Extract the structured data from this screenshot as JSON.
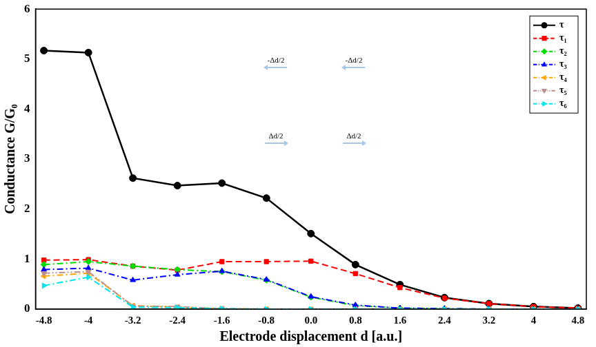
{
  "chart_data": {
    "type": "line",
    "x_label": "Electrode displacement d [a.u.]",
    "y_label": "Conductance G/G₀",
    "x": [
      -4.8,
      -4.0,
      -3.2,
      -2.4,
      -1.6,
      -0.8,
      0.0,
      0.8,
      1.6,
      2.4,
      3.2,
      4.0,
      4.8
    ],
    "series": [
      {
        "name": "τ",
        "color": "#000000",
        "marker": "circle",
        "line_style": "solid",
        "values": [
          5.17,
          5.13,
          2.62,
          2.47,
          2.52,
          2.22,
          1.51,
          0.89,
          0.49,
          0.23,
          0.11,
          0.05,
          0.02
        ]
      },
      {
        "name": "τ₁",
        "color": "#ff0000",
        "marker": "square",
        "line_style": "dashed",
        "values": [
          0.98,
          0.99,
          0.86,
          0.78,
          0.95,
          0.95,
          0.96,
          0.71,
          0.43,
          0.22,
          0.11,
          0.05,
          0.02
        ]
      },
      {
        "name": "τ₂",
        "color": "#00dd00",
        "marker": "diamond",
        "line_style": "dashdot",
        "values": [
          0.89,
          0.95,
          0.86,
          0.79,
          0.75,
          0.58,
          0.24,
          0.07,
          0.02,
          0.01,
          0.0,
          0.0,
          0.0
        ]
      },
      {
        "name": "τ₃",
        "color": "#0000ff",
        "marker": "triangle",
        "line_style": "dashdot",
        "values": [
          0.79,
          0.82,
          0.58,
          0.69,
          0.76,
          0.59,
          0.25,
          0.08,
          0.02,
          0.01,
          0.0,
          0.0,
          0.0
        ]
      },
      {
        "name": "τ₄",
        "color": "#ffa500",
        "marker": "triangle-left",
        "line_style": "dashdot",
        "values": [
          0.66,
          0.72,
          0.07,
          0.04,
          0.01,
          0.0,
          0.0,
          0.0,
          0.0,
          0.0,
          0.0,
          0.0,
          0.0
        ]
      },
      {
        "name": "τ₅",
        "color": "#bc8f8f",
        "marker": "triangle-down",
        "line_style": "dashdotdot",
        "values": [
          0.72,
          0.75,
          0.06,
          0.05,
          0.01,
          0.0,
          0.0,
          0.0,
          0.0,
          0.0,
          0.0,
          0.0,
          0.0
        ]
      },
      {
        "name": "τ₆",
        "color": "#00e5ee",
        "marker": "triangle-right",
        "line_style": "dashdot",
        "values": [
          0.47,
          0.64,
          0.04,
          0.03,
          0.01,
          0.0,
          0.0,
          0.0,
          0.0,
          0.0,
          0.0,
          0.0,
          0.0
        ]
      }
    ],
    "xlim": [
      -4.95,
      4.95
    ],
    "xticks": [
      -4.8,
      -4.0,
      -3.2,
      -2.4,
      -1.6,
      -0.8,
      {
        "value": 0,
        "label": "0.0"
      },
      0.8,
      1.6,
      2.4,
      3.2,
      4.0,
      4.8
    ],
    "ylim": [
      0,
      6
    ],
    "yticks": [
      0,
      1,
      2,
      3,
      4,
      5,
      6
    ],
    "grid": false,
    "legend": "top-right",
    "annotations": [
      "-Δd/2",
      "-Δd/2",
      "Δd/2",
      "Δd/2"
    ]
  }
}
